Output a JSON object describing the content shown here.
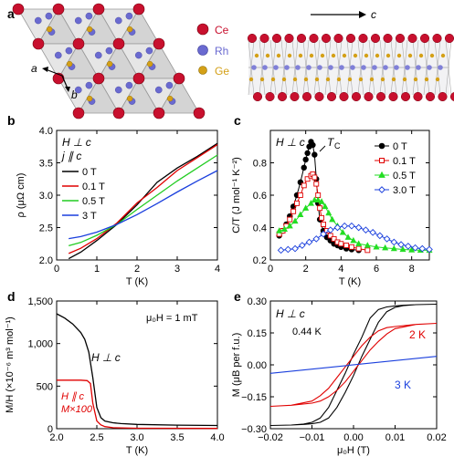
{
  "panels": {
    "a": "a",
    "b": "b",
    "c": "c",
    "d": "d",
    "e": "e"
  },
  "structure": {
    "legend": [
      {
        "label": "Ce",
        "color": "#c8102e"
      },
      {
        "label": "Rh",
        "color": "#6a6ad0"
      },
      {
        "label": "Ge",
        "color": "#d4a017"
      }
    ],
    "axis_a": "a",
    "axis_b": "b",
    "axis_c": "c"
  },
  "chart_data": [
    {
      "id": "b",
      "type": "line",
      "ylabel": "ρ (μΩ cm)",
      "xlabel": "T (K)",
      "xlim": [
        0,
        4
      ],
      "ylim": [
        2.0,
        4.0
      ],
      "xticks": [
        "0",
        "1",
        "2",
        "3",
        "4"
      ],
      "yticks": [
        "2.0",
        "2.5",
        "3.0",
        "3.5",
        "4.0"
      ],
      "annotations": [
        "H ⊥ c",
        "j ∥ c"
      ],
      "series": [
        {
          "name": "0 T",
          "color": "#000000",
          "x": [
            0.3,
            0.6,
            1.0,
            1.5,
            2.0,
            2.5,
            3.0,
            3.5,
            4.0
          ],
          "y": [
            2.02,
            2.12,
            2.3,
            2.55,
            2.85,
            3.2,
            3.42,
            3.6,
            3.8
          ]
        },
        {
          "name": "0.1 T",
          "color": "#e00000",
          "x": [
            0.3,
            0.6,
            1.0,
            1.5,
            2.0,
            2.5,
            3.0,
            3.5,
            4.0
          ],
          "y": [
            2.1,
            2.18,
            2.33,
            2.57,
            2.88,
            3.12,
            3.38,
            3.58,
            3.78
          ]
        },
        {
          "name": "0.5 T",
          "color": "#22cc22",
          "x": [
            0.3,
            0.6,
            1.0,
            1.5,
            2.0,
            2.5,
            3.0,
            3.5,
            4.0
          ],
          "y": [
            2.22,
            2.27,
            2.38,
            2.55,
            2.78,
            3.0,
            3.22,
            3.42,
            3.62
          ]
        },
        {
          "name": "3 T",
          "color": "#1a3fdd",
          "x": [
            0.3,
            0.6,
            1.0,
            1.5,
            2.0,
            2.5,
            3.0,
            3.5,
            4.0
          ],
          "y": [
            2.33,
            2.36,
            2.43,
            2.55,
            2.7,
            2.87,
            3.05,
            3.22,
            3.38
          ]
        }
      ]
    },
    {
      "id": "c",
      "type": "scatter",
      "ylabel": "C/T (J mol⁻¹ K⁻²)",
      "xlabel": "T (K)",
      "xlim": [
        0,
        9
      ],
      "ylim": [
        0.2,
        1.0
      ],
      "xticks": [
        "0",
        "2",
        "4",
        "6",
        "8"
      ],
      "yticks": [
        "0.2",
        "0.4",
        "0.6",
        "0.8"
      ],
      "annotations": [
        "H ⊥ c",
        "T_C"
      ],
      "series": [
        {
          "name": "0 T",
          "color": "#000000",
          "marker": "circle",
          "filled": true,
          "x": [
            0.5,
            0.7,
            0.9,
            1.1,
            1.3,
            1.5,
            1.7,
            1.9,
            2.0,
            2.1,
            2.2,
            2.3,
            2.4,
            2.5,
            2.6,
            2.7,
            2.8,
            3.0,
            3.2,
            3.4,
            3.6,
            3.8,
            4.0,
            4.3,
            4.6,
            5.0
          ],
          "y": [
            0.35,
            0.38,
            0.42,
            0.47,
            0.53,
            0.6,
            0.68,
            0.77,
            0.82,
            0.86,
            0.9,
            0.93,
            0.91,
            0.85,
            0.7,
            0.55,
            0.45,
            0.38,
            0.34,
            0.32,
            0.3,
            0.29,
            0.28,
            0.27,
            0.265,
            0.26
          ]
        },
        {
          "name": "0.1 T",
          "color": "#e00000",
          "marker": "square",
          "filled": false,
          "x": [
            0.5,
            0.7,
            0.9,
            1.1,
            1.3,
            1.5,
            1.7,
            1.9,
            2.1,
            2.3,
            2.4,
            2.5,
            2.6,
            2.7,
            2.8,
            2.9,
            3.0,
            3.2,
            3.4,
            3.6,
            3.8,
            4.0,
            4.3,
            4.6,
            5.0,
            5.5
          ],
          "y": [
            0.36,
            0.38,
            0.41,
            0.45,
            0.5,
            0.55,
            0.6,
            0.66,
            0.7,
            0.72,
            0.73,
            0.71,
            0.67,
            0.6,
            0.52,
            0.46,
            0.42,
            0.38,
            0.35,
            0.33,
            0.31,
            0.3,
            0.29,
            0.28,
            0.27,
            0.26
          ]
        },
        {
          "name": "0.5 T",
          "color": "#22dd22",
          "marker": "triangle",
          "filled": true,
          "x": [
            0.5,
            0.8,
            1.1,
            1.4,
            1.7,
            2.0,
            2.3,
            2.5,
            2.7,
            2.9,
            3.1,
            3.3,
            3.5,
            3.8,
            4.1,
            4.4,
            4.7,
            5.0,
            5.5,
            6.0,
            6.5,
            7.0,
            7.5,
            8.0,
            8.5,
            9.0
          ],
          "y": [
            0.38,
            0.39,
            0.41,
            0.44,
            0.48,
            0.52,
            0.55,
            0.57,
            0.57,
            0.56,
            0.53,
            0.49,
            0.45,
            0.41,
            0.37,
            0.34,
            0.32,
            0.3,
            0.29,
            0.28,
            0.275,
            0.27,
            0.265,
            0.262,
            0.26,
            0.26
          ]
        },
        {
          "name": "3.0 T",
          "color": "#1a3fdd",
          "marker": "diamond",
          "filled": false,
          "x": [
            0.6,
            1.0,
            1.4,
            1.8,
            2.2,
            2.6,
            3.0,
            3.4,
            3.8,
            4.2,
            4.6,
            5.0,
            5.4,
            5.8,
            6.2,
            6.6,
            7.0,
            7.4,
            7.8,
            8.2,
            8.6,
            9.0
          ],
          "y": [
            0.26,
            0.265,
            0.27,
            0.29,
            0.31,
            0.33,
            0.36,
            0.385,
            0.4,
            0.41,
            0.41,
            0.4,
            0.385,
            0.37,
            0.35,
            0.33,
            0.31,
            0.295,
            0.285,
            0.275,
            0.27,
            0.265
          ]
        }
      ]
    },
    {
      "id": "d",
      "type": "line",
      "ylabel": "M/H (×10⁻⁶ m³ mol⁻¹)",
      "xlabel": "T (K)",
      "xlim": [
        2.0,
        4.0
      ],
      "ylim": [
        0,
        1500
      ],
      "xticks": [
        "2.0",
        "2.5",
        "3.0",
        "3.5",
        "4.0"
      ],
      "yticks": [
        "0",
        "500",
        "1,000",
        "1,500"
      ],
      "annotations": [
        "μ₀H = 1 mT",
        "H ⊥ c",
        "H ∥ c",
        "M×100"
      ],
      "series": [
        {
          "name": "H ⊥ c",
          "color": "#000000",
          "x": [
            2.0,
            2.1,
            2.2,
            2.3,
            2.35,
            2.4,
            2.45,
            2.5,
            2.55,
            2.6,
            2.7,
            2.8,
            3.0,
            3.5,
            4.0
          ],
          "y": [
            1350,
            1300,
            1230,
            1130,
            1050,
            900,
            600,
            250,
            130,
            90,
            70,
            60,
            50,
            42,
            38
          ]
        },
        {
          "name": "H ∥ c",
          "color": "#e00000",
          "x": [
            2.0,
            2.3,
            2.38,
            2.42,
            2.45,
            2.5,
            2.55,
            2.6,
            2.7,
            3.0,
            4.0
          ],
          "y": [
            570,
            570,
            565,
            530,
            300,
            90,
            45,
            25,
            12,
            5,
            3
          ]
        }
      ]
    },
    {
      "id": "e",
      "type": "line",
      "ylabel": "M (μB per f.u.)",
      "xlabel": "μ₀H (T)",
      "xlim": [
        -0.02,
        0.02
      ],
      "ylim": [
        -0.3,
        0.3
      ],
      "xticks": [
        "−0.02",
        "−0.01",
        "0.00",
        "0.01",
        "0.02"
      ],
      "yticks": [
        "−0.30",
        "−0.15",
        "0.00",
        "0.15",
        "0.30"
      ],
      "annotations": [
        "H ⊥ c",
        "0.44 K",
        "2 K",
        "3 K"
      ],
      "series": [
        {
          "name": "0.44 K",
          "color": "#000000",
          "x": [
            -0.02,
            -0.015,
            -0.012,
            -0.01,
            -0.008,
            -0.006,
            -0.004,
            -0.002,
            0.0,
            0.002,
            0.004,
            0.006,
            0.008,
            0.01,
            0.012,
            0.015,
            0.02,
            0.015,
            0.012,
            0.01,
            0.008,
            0.006,
            0.004,
            0.002,
            0.0,
            -0.002,
            -0.004,
            -0.006,
            -0.008,
            -0.01,
            -0.012,
            -0.015,
            -0.02
          ],
          "y": [
            -0.285,
            -0.283,
            -0.28,
            -0.277,
            -0.27,
            -0.25,
            -0.2,
            -0.13,
            -0.05,
            0.04,
            0.12,
            0.2,
            0.25,
            0.27,
            0.278,
            0.283,
            0.285,
            0.283,
            0.28,
            0.277,
            0.272,
            0.26,
            0.22,
            0.13,
            0.05,
            -0.04,
            -0.12,
            -0.2,
            -0.25,
            -0.27,
            -0.278,
            -0.283,
            -0.285
          ]
        },
        {
          "name": "2 K",
          "color": "#e00000",
          "x": [
            -0.02,
            -0.015,
            -0.01,
            -0.008,
            -0.006,
            -0.004,
            -0.002,
            0.0,
            0.002,
            0.004,
            0.006,
            0.008,
            0.01,
            0.015,
            0.02,
            0.015,
            0.01,
            0.008,
            0.006,
            0.004,
            0.002,
            0.0,
            -0.002,
            -0.004,
            -0.006,
            -0.008,
            -0.01,
            -0.015,
            -0.02
          ],
          "y": [
            -0.195,
            -0.19,
            -0.18,
            -0.17,
            -0.15,
            -0.12,
            -0.08,
            -0.03,
            0.02,
            0.07,
            0.11,
            0.145,
            0.17,
            0.19,
            0.195,
            0.19,
            0.18,
            0.175,
            0.16,
            0.13,
            0.09,
            0.04,
            -0.01,
            -0.06,
            -0.11,
            -0.145,
            -0.17,
            -0.19,
            -0.195
          ]
        },
        {
          "name": "3 K",
          "color": "#1a3fdd",
          "x": [
            -0.02,
            0.02
          ],
          "y": [
            -0.04,
            0.04
          ]
        }
      ]
    }
  ]
}
